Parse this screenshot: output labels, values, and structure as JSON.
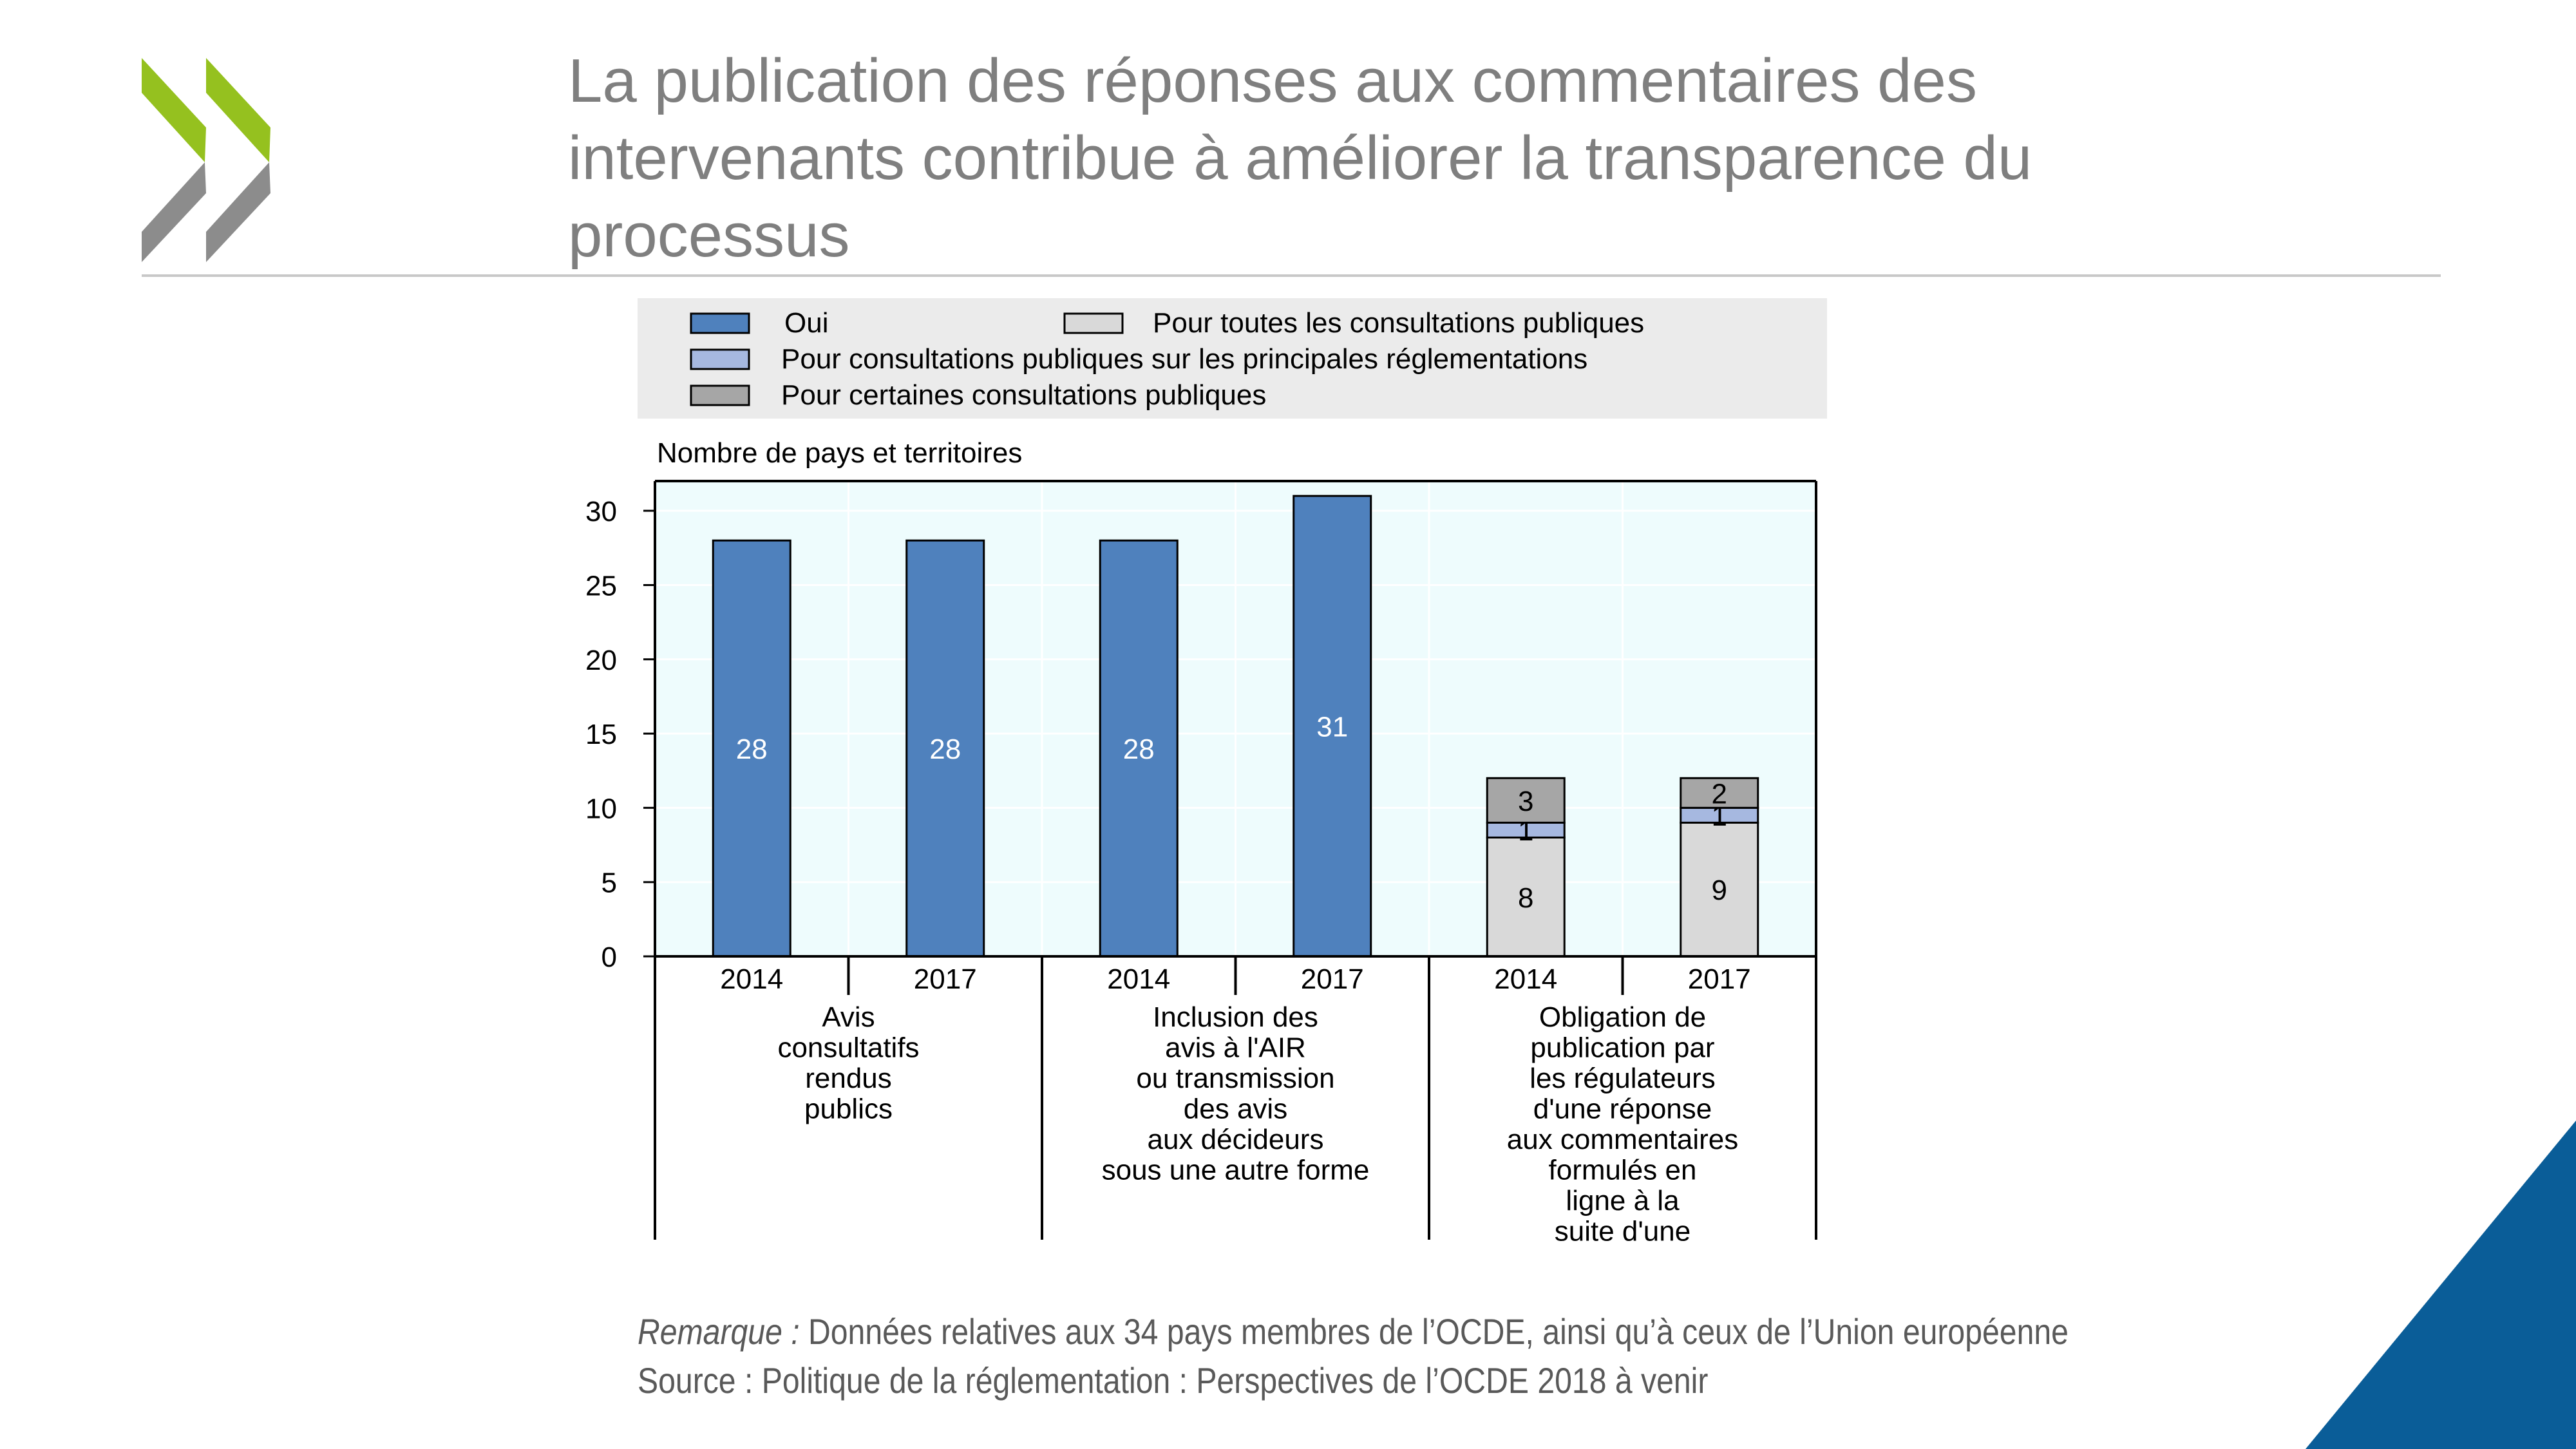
{
  "slide": {
    "title": "La publication des réponses aux commentaires des intervenants contribue à améliorer la transparence du processus",
    "note_label": "Remarque :",
    "note_text": " Données relatives aux 34 pays membres de l’OCDE, ainsi qu’à ceux de l’Union européenne",
    "source": "Source : Politique de la réglementation : Perspectives de l’OCDE 2018 à venir"
  },
  "colors": {
    "title": "#7f7f7f",
    "logo_green": "#95c11f",
    "logo_grey": "#8c8c8c",
    "corner_blue": "#0a5d98",
    "plot_bg": "#eefcfd",
    "legend_bg": "#ebebeb"
  },
  "chart_data": {
    "type": "bar",
    "ylabel": "Nombre de pays et territoires",
    "ylim": [
      0,
      30
    ],
    "yticks": [
      0,
      5,
      10,
      15,
      20,
      25,
      30
    ],
    "legend_placement": "top",
    "legend": [
      {
        "name": "Oui",
        "color": "#4f81bd"
      },
      {
        "name": "Pour toutes les consultations publiques",
        "color": "#d9d9d9"
      },
      {
        "name": "Pour consultations publiques sur les principales réglementations",
        "color": "#a6b8e0"
      },
      {
        "name": "Pour certaines consultations publiques",
        "color": "#a6a6a6"
      }
    ],
    "groups": [
      {
        "label": "Avis consultatifs rendus publics",
        "label_lines": [
          "Avis",
          "consultatifs",
          "rendus",
          "publics"
        ]
      },
      {
        "label": "Inclusion des avis à l'AIR ou transmission des avis aux décideurs sous une autre forme",
        "label_lines": [
          "Inclusion des",
          "avis à l'AIR",
          "ou transmission",
          "des avis",
          "aux décideurs",
          "sous une autre forme"
        ]
      },
      {
        "label": "Obligation de publication par les régulateurs d'une réponse aux commentaires formulés en ligne à la suite d'une",
        "label_lines": [
          "Obligation de",
          "publication par",
          "les régulateurs",
          "d'une réponse",
          "aux commentaires",
          "formulés en",
          "ligne à la",
          "suite d'une"
        ]
      }
    ],
    "bars": [
      {
        "group": 0,
        "year": "2014",
        "segments": [
          {
            "series": 0,
            "value": 28
          }
        ]
      },
      {
        "group": 0,
        "year": "2017",
        "segments": [
          {
            "series": 0,
            "value": 28
          }
        ]
      },
      {
        "group": 1,
        "year": "2014",
        "segments": [
          {
            "series": 0,
            "value": 28
          }
        ]
      },
      {
        "group": 1,
        "year": "2017",
        "segments": [
          {
            "series": 0,
            "value": 31
          }
        ]
      },
      {
        "group": 2,
        "year": "2014",
        "segments": [
          {
            "series": 1,
            "value": 8
          },
          {
            "series": 2,
            "value": 1
          },
          {
            "series": 3,
            "value": 3
          }
        ]
      },
      {
        "group": 2,
        "year": "2017",
        "segments": [
          {
            "series": 1,
            "value": 9
          },
          {
            "series": 2,
            "value": 1
          },
          {
            "series": 3,
            "value": 2
          }
        ]
      }
    ]
  }
}
